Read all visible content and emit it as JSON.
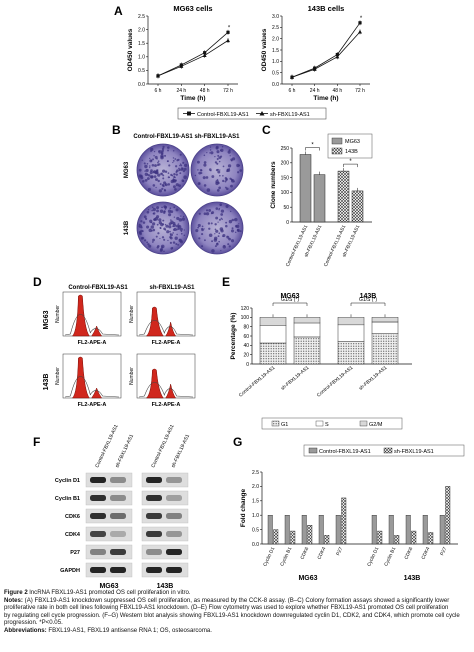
{
  "panels": {
    "A": {
      "letter": "A",
      "charts": [
        {
          "title": "MG63 cells",
          "ylabel": "OD450 values",
          "xlabel": "Time (h)",
          "yticks": [
            "0.0",
            "0.5",
            "1.0",
            "1.5",
            "2.0",
            "2.5"
          ],
          "ylim": [
            0,
            2.5
          ],
          "xticks": [
            "6 h",
            "24 h",
            "48 h",
            "72 h"
          ],
          "star": "*",
          "series": [
            {
              "name": "Control-FBXL19-AS1",
              "values": [
                0.3,
                0.7,
                1.15,
                1.9
              ]
            },
            {
              "name": "sh-FBXL19-AS1",
              "values": [
                0.3,
                0.65,
                1.05,
                1.6
              ]
            }
          ]
        },
        {
          "title": "143B cells",
          "ylabel": "OD450 values",
          "xlabel": "Time (h)",
          "yticks": [
            "0.0",
            "0.5",
            "1.0",
            "1.5",
            "2.0",
            "2.5",
            "3.0"
          ],
          "ylim": [
            0,
            3.0
          ],
          "xticks": [
            "6 h",
            "24 h",
            "48 h",
            "72 h"
          ],
          "star": "*",
          "series": [
            {
              "name": "Control-FBXL19-AS1",
              "values": [
                0.3,
                0.7,
                1.3,
                2.7
              ]
            },
            {
              "name": "sh-FBXL19-AS1",
              "values": [
                0.3,
                0.65,
                1.2,
                2.3
              ]
            }
          ]
        }
      ],
      "legend": [
        "Control-FBXL19-AS1",
        "sh-FBXL19-AS1"
      ]
    },
    "B": {
      "letter": "B",
      "col_labels": [
        "Control-FBXL19-AS1",
        "sh-FBXL19-AS1"
      ],
      "row_labels": [
        "MG63",
        "143B"
      ]
    },
    "C": {
      "letter": "C",
      "ylabel": "Clone numbers",
      "yticks": [
        "0",
        "50",
        "100",
        "150",
        "200",
        "250"
      ],
      "ylim": [
        0,
        250
      ],
      "categories": [
        "Control-FBXL19-AS1",
        "sh-FBXL19-AS1",
        "Control-FBXL19-AS1",
        "sh-FBXL19-AS1"
      ],
      "series": [
        {
          "name": "MG63",
          "values": [
            228,
            160
          ]
        },
        {
          "name": "143B",
          "values": [
            172,
            105
          ]
        }
      ],
      "stars": [
        "*",
        "*"
      ]
    },
    "D": {
      "letter": "D",
      "col_labels": [
        "Control-FBXL19-AS1",
        "sh-FBXL19-AS1"
      ],
      "row_labels": [
        "MG63",
        "143B"
      ],
      "xlabel": "FL2-APE-A",
      "ylabel": "Number"
    },
    "E": {
      "letter": "E",
      "ylabel": "Percentage (%)",
      "yticks": [
        "0",
        "20",
        "40",
        "60",
        "80",
        "100",
        "120"
      ],
      "ylim": [
        0,
        120
      ],
      "group_titles": [
        "MG63",
        "143B"
      ],
      "annotation": "G1/S (*)",
      "categories": [
        "Control-FBXL19-AS1",
        "sh-FBXL19-AS1",
        "Control-FBXL19-AS1",
        "sh-FBXL19-AS1"
      ],
      "series": [
        {
          "name": "G1",
          "values": [
            45,
            58,
            48,
            65
          ]
        },
        {
          "name": "S",
          "values": [
            38,
            30,
            36,
            25
          ]
        },
        {
          "name": "G2/M",
          "values": [
            17,
            12,
            16,
            10
          ]
        }
      ]
    },
    "F": {
      "letter": "F",
      "col_labels": [
        "Control-FBXL19-AS1",
        "sh-FBXL19-AS1",
        "Control-FBXL19-AS1",
        "sh-FBXL19-AS1"
      ],
      "proteins": [
        "Cyclin D1",
        "Cyclin B1",
        "CDK6",
        "CDK4",
        "P27",
        "GAPDH"
      ],
      "group_labels": [
        "MG63",
        "143B"
      ]
    },
    "G": {
      "letter": "G",
      "ylabel": "Fold change",
      "yticks": [
        "0.0",
        "0.5",
        "1.0",
        "1.5",
        "2.0",
        "2.5"
      ],
      "ylim": [
        0,
        2.5
      ],
      "legend": [
        "Control-FBXL19-AS1",
        "sh-FBXL19-AS1"
      ],
      "categories": [
        "Cyclin D1",
        "Cyclin B1",
        "CDK6",
        "CDK4",
        "P27"
      ],
      "group_labels": [
        "MG63",
        "143B"
      ],
      "groups": [
        {
          "control": [
            1,
            1,
            1,
            1,
            1
          ],
          "sh": [
            0.5,
            0.45,
            0.65,
            0.3,
            1.6
          ]
        },
        {
          "control": [
            1,
            1,
            1,
            1,
            1
          ],
          "sh": [
            0.45,
            0.3,
            0.45,
            0.4,
            2.0
          ]
        }
      ]
    }
  },
  "caption": {
    "figure_label": "Figure 2",
    "title": "lncRNA FBXL19-AS1 promoted OS cell proliferation in vitro.",
    "notes_label": "Notes:",
    "notes_lines": [
      "(A) FBXL19-AS1 knockdown suppressed OS cell proliferation, as measured by the CCK-8 assay. (B–C) Colony formation assays showed a significantly lower",
      "proliferative rate in both cell lines following FBXL19-AS1 knockdown. (D–E) Flow cytometry was used to explore whether FBXL19-AS1 promoted OS cell proliferation",
      "by regulating cell cycle progression. (F–G) Western blot analysis showing FBXL19-AS1 knockdown downregulated cyclin D1, CDK2, and CDK4, which promote cell cycle",
      "progression. *P<0.05."
    ],
    "abbrev_label": "Abbreviations:",
    "abbrev_text": "FBXL19-AS1, FBXL19 antisense RNA 1; OS, osteosarcoma."
  }
}
